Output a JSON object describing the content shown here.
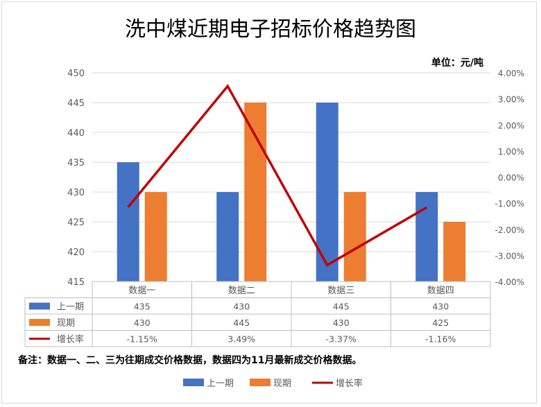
{
  "chart_data": {
    "type": "bar",
    "title": "洗中煤近期电子招标价格趋势图",
    "unit_label": "单位：元/吨",
    "categories": [
      "数据一",
      "数据二",
      "数据三",
      "数据四"
    ],
    "series": [
      {
        "name": "上一期",
        "kind": "bar",
        "axis": "left",
        "values": [
          435,
          430,
          445,
          430
        ],
        "display": [
          "435",
          "430",
          "445",
          "430"
        ],
        "color": "#4472C4"
      },
      {
        "name": "现期",
        "kind": "bar",
        "axis": "left",
        "values": [
          430,
          445,
          430,
          425
        ],
        "display": [
          "430",
          "445",
          "430",
          "425"
        ],
        "color": "#ED7D31"
      },
      {
        "name": "增长率",
        "kind": "line",
        "axis": "right",
        "values": [
          -1.15,
          3.49,
          -3.37,
          -1.16
        ],
        "display": [
          "-1.15%",
          "3.49%",
          "-3.37%",
          "-1.16%"
        ],
        "color": "#C00000"
      }
    ],
    "y_left": {
      "min": 415,
      "max": 450,
      "step": 5,
      "ticks": [
        "415",
        "420",
        "425",
        "430",
        "435",
        "440",
        "445",
        "450"
      ]
    },
    "y_right": {
      "min": -4,
      "max": 4,
      "step": 1,
      "ticks": [
        "-4.00%",
        "-3.00%",
        "-2.00%",
        "-1.00%",
        "0.00%",
        "1.00%",
        "2.00%",
        "3.00%",
        "4.00%"
      ]
    },
    "grid": true,
    "data_table": true,
    "legend_position": "bottom",
    "note": "备注：数据一、二、三为往期成交价格数据，数据四为11月最新成交价格数据。"
  }
}
